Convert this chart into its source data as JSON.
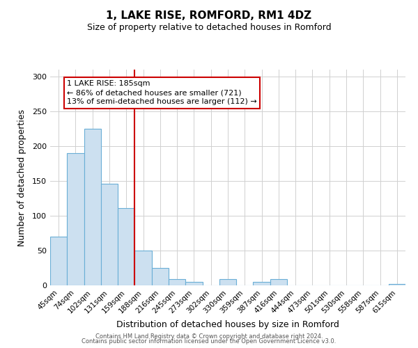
{
  "title": "1, LAKE RISE, ROMFORD, RM1 4DZ",
  "subtitle": "Size of property relative to detached houses in Romford",
  "xlabel": "Distribution of detached houses by size in Romford",
  "ylabel": "Number of detached properties",
  "bar_labels": [
    "45sqm",
    "74sqm",
    "102sqm",
    "131sqm",
    "159sqm",
    "188sqm",
    "216sqm",
    "245sqm",
    "273sqm",
    "302sqm",
    "330sqm",
    "359sqm",
    "387sqm",
    "416sqm",
    "444sqm",
    "473sqm",
    "501sqm",
    "530sqm",
    "558sqm",
    "587sqm",
    "615sqm"
  ],
  "bar_values": [
    70,
    190,
    225,
    146,
    111,
    50,
    25,
    9,
    5,
    0,
    9,
    0,
    5,
    9,
    0,
    0,
    0,
    0,
    0,
    0,
    2
  ],
  "bar_color": "#cce0f0",
  "bar_edge_color": "#6aaed6",
  "vline_index": 5,
  "property_line_label": "1 LAKE RISE: 185sqm",
  "annotation_line1": "← 86% of detached houses are smaller (721)",
  "annotation_line2": "13% of semi-detached houses are larger (112) →",
  "annotation_box_color": "#cc0000",
  "vline_color": "#cc0000",
  "ylim": [
    0,
    310
  ],
  "yticks": [
    0,
    50,
    100,
    150,
    200,
    250,
    300
  ],
  "footer_line1": "Contains HM Land Registry data © Crown copyright and database right 2024.",
  "footer_line2": "Contains public sector information licensed under the Open Government Licence v3.0.",
  "background_color": "#ffffff",
  "grid_color": "#d0d0d0"
}
